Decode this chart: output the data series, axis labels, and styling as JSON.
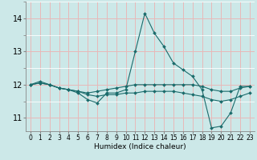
{
  "title": "",
  "xlabel": "Humidex (Indice chaleur)",
  "bg_color": "#cce8e8",
  "grid_major_color": "#e8b8b8",
  "grid_minor_color": "#ffffff",
  "line_color": "#1a6b6b",
  "marker_color": "#1a6b6b",
  "xlim": [
    -0.5,
    23.5
  ],
  "ylim": [
    10.6,
    14.5
  ],
  "yticks": [
    11,
    12,
    13,
    14
  ],
  "xticks": [
    0,
    1,
    2,
    3,
    4,
    5,
    6,
    7,
    8,
    9,
    10,
    11,
    12,
    13,
    14,
    15,
    16,
    17,
    18,
    19,
    20,
    21,
    22,
    23
  ],
  "series": [
    {
      "x": [
        0,
        1,
        2,
        3,
        4,
        5,
        6,
        7,
        8,
        9,
        10,
        11,
        12,
        13,
        14,
        15,
        16,
        17,
        18,
        19,
        20,
        21,
        22,
        23
      ],
      "y": [
        12.0,
        12.1,
        12.0,
        11.9,
        11.85,
        11.75,
        11.55,
        11.45,
        11.75,
        11.75,
        11.85,
        13.0,
        14.15,
        13.55,
        13.15,
        12.65,
        12.45,
        12.25,
        11.85,
        10.7,
        10.75,
        11.15,
        11.95,
        11.95
      ]
    },
    {
      "x": [
        0,
        1,
        2,
        3,
        4,
        5,
        6,
        7,
        8,
        9,
        10,
        11,
        12,
        13,
        14,
        15,
        16,
        17,
        18,
        19,
        20,
        21,
        22,
        23
      ],
      "y": [
        12.0,
        12.05,
        12.0,
        11.9,
        11.85,
        11.8,
        11.75,
        11.8,
        11.85,
        11.9,
        11.95,
        12.0,
        12.0,
        12.0,
        12.0,
        12.0,
        12.0,
        12.0,
        11.95,
        11.85,
        11.8,
        11.8,
        11.9,
        11.95
      ]
    },
    {
      "x": [
        0,
        1,
        2,
        3,
        4,
        5,
        6,
        7,
        8,
        9,
        10,
        11,
        12,
        13,
        14,
        15,
        16,
        17,
        18,
        19,
        20,
        21,
        22,
        23
      ],
      "y": [
        12.0,
        12.05,
        12.0,
        11.9,
        11.85,
        11.8,
        11.7,
        11.65,
        11.7,
        11.7,
        11.75,
        11.75,
        11.8,
        11.8,
        11.8,
        11.8,
        11.75,
        11.7,
        11.65,
        11.55,
        11.5,
        11.55,
        11.65,
        11.75
      ]
    }
  ]
}
